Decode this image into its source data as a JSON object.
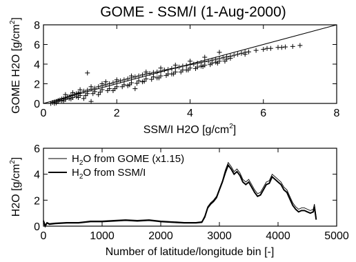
{
  "chart_data": [
    {
      "type": "scatter",
      "title": "GOME - SSM/I (1-Aug-2000)",
      "xlabel": {
        "main": "SSM/I H2O [g/cm",
        "sup": "2",
        "end": "]"
      },
      "ylabel": {
        "main": "GOME H2O [g/cm",
        "sup": "2",
        "end": "]"
      },
      "xlim": [
        0,
        8
      ],
      "ylim": [
        0,
        8
      ],
      "xticks": [
        "0",
        "2",
        "4",
        "6",
        "8"
      ],
      "xtick_values": [
        0,
        2,
        4,
        6,
        8
      ],
      "yticks": [
        "0",
        "2",
        "4",
        "6",
        "8"
      ],
      "ytick_values": [
        0,
        2,
        4,
        6,
        8
      ],
      "marker": "+",
      "reference_line": {
        "x": [
          0,
          8
        ],
        "y": [
          0,
          8
        ]
      },
      "points_x": [
        0.2,
        0.25,
        0.3,
        0.35,
        0.4,
        0.45,
        0.5,
        0.55,
        0.6,
        0.65,
        0.7,
        0.75,
        0.8,
        0.85,
        0.9,
        0.95,
        1.0,
        1.1,
        1.2,
        1.3,
        1.4,
        1.5,
        1.6,
        1.7,
        1.8,
        1.9,
        2.0,
        2.1,
        2.2,
        2.3,
        2.4,
        2.5,
        2.6,
        2.7,
        2.8,
        2.9,
        3.0,
        3.1,
        3.2,
        3.3,
        3.4,
        3.5,
        3.6,
        3.7,
        3.8,
        3.9,
        4.0,
        4.1,
        4.2,
        4.3,
        4.4,
        4.5,
        4.6,
        4.7,
        4.8,
        4.9,
        5.0,
        5.1,
        5.2,
        5.3,
        5.4,
        5.5,
        5.6,
        5.8,
        6.0,
        6.2,
        6.4,
        6.6,
        6.8,
        7.0,
        0.3,
        0.4,
        0.5,
        0.6,
        0.7,
        0.8,
        0.9,
        1.0,
        1.2,
        1.4,
        1.6,
        1.8,
        2.0,
        2.2,
        2.4,
        2.6,
        2.8,
        3.0,
        3.2,
        3.4,
        3.6,
        3.8,
        4.0,
        4.2,
        4.4,
        4.6,
        4.8,
        5.0,
        0.6,
        0.8,
        1.0,
        1.3,
        1.6,
        2.0,
        2.4,
        2.8,
        3.2,
        3.6,
        4.0,
        4.4,
        4.8,
        1.1,
        1.5,
        1.9,
        2.3,
        2.7,
        3.1,
        3.5,
        3.9,
        4.3,
        4.7,
        5.1,
        5.5,
        6.1,
        6.5,
        1.2,
        1.7,
        2.5,
        1.3,
        0.35,
        0.55,
        0.75,
        0.95,
        1.15,
        1.35,
        1.55,
        1.75,
        1.95,
        2.15,
        2.35,
        2.55,
        2.75,
        2.95,
        3.15,
        3.35,
        3.55,
        3.75,
        3.95,
        4.15,
        4.35,
        4.55,
        4.75,
        4.95
      ],
      "points_y": [
        0.0,
        0.1,
        0.15,
        0.2,
        0.3,
        0.35,
        0.45,
        0.5,
        0.55,
        0.65,
        0.7,
        0.8,
        0.85,
        0.9,
        1.0,
        1.05,
        1.1,
        1.25,
        1.35,
        1.45,
        1.55,
        1.7,
        1.8,
        1.9,
        2.0,
        2.1,
        2.2,
        2.3,
        2.4,
        2.5,
        2.6,
        2.7,
        2.8,
        2.9,
        3.0,
        3.05,
        3.15,
        3.2,
        3.3,
        3.4,
        3.45,
        3.55,
        3.6,
        3.7,
        3.8,
        3.85,
        3.95,
        4.0,
        4.1,
        4.15,
        4.25,
        4.3,
        4.4,
        4.5,
        4.55,
        4.65,
        4.75,
        4.8,
        4.9,
        5.0,
        5.1,
        5.2,
        5.25,
        5.4,
        5.5,
        5.6,
        5.7,
        5.75,
        5.8,
        5.9,
        0.0,
        0.2,
        0.3,
        0.4,
        0.5,
        0.6,
        0.7,
        0.8,
        1.0,
        1.2,
        1.4,
        1.5,
        1.7,
        1.9,
        2.1,
        2.3,
        2.5,
        2.7,
        2.8,
        3.0,
        3.2,
        3.4,
        3.6,
        3.7,
        3.9,
        4.1,
        4.3,
        4.5,
        0.9,
        1.1,
        1.4,
        1.7,
        2.0,
        2.4,
        2.8,
        3.2,
        3.6,
        3.9,
        4.3,
        4.7,
        5.2,
        0.5,
        0.9,
        1.3,
        1.8,
        2.2,
        2.6,
        3.0,
        3.4,
        3.8,
        4.2,
        4.6,
        5.0,
        5.6,
        5.7,
        3.1,
        2.2,
        1.5,
        0.2,
        0.05,
        0.25,
        0.45,
        0.6,
        0.8,
        1.0,
        1.15,
        1.3,
        1.5,
        1.7,
        1.9,
        2.05,
        2.25,
        2.45,
        2.6,
        2.85,
        3.0,
        3.2,
        3.4,
        3.55,
        3.75,
        3.95,
        4.1,
        4.3
      ],
      "grid": false
    },
    {
      "type": "line",
      "xlabel": "Number of latitude/longitude bin [-]",
      "ylabel": {
        "main": "H2O [g/cm",
        "sup": "2",
        "end": "]"
      },
      "xlim": [
        0,
        5000
      ],
      "ylim": [
        0,
        6
      ],
      "xticks": [
        "0",
        "1000",
        "2000",
        "3000",
        "4000",
        "5000"
      ],
      "xtick_values": [
        0,
        1000,
        2000,
        3000,
        4000,
        5000
      ],
      "yticks": [
        "0",
        "2",
        "4",
        "6"
      ],
      "ytick_values": [
        0,
        2,
        4,
        6
      ],
      "legend": "top-left",
      "series": [
        {
          "name": {
            "pre": "H",
            "sub": "2",
            "post": "O from GOME (x1.15)"
          },
          "style": "thin",
          "x": [
            0,
            30,
            60,
            100,
            200,
            400,
            600,
            800,
            1000,
            1200,
            1400,
            1600,
            1800,
            2000,
            2200,
            2400,
            2600,
            2700,
            2750,
            2800,
            2850,
            2900,
            2950,
            3000,
            3050,
            3100,
            3150,
            3200,
            3250,
            3300,
            3350,
            3400,
            3450,
            3500,
            3550,
            3600,
            3650,
            3700,
            3750,
            3800,
            3850,
            3900,
            3950,
            4000,
            4050,
            4100,
            4150,
            4200,
            4250,
            4300,
            4350,
            4400,
            4450,
            4500,
            4550,
            4600,
            4620,
            4650
          ],
          "y": [
            0.5,
            0.1,
            0.3,
            0.2,
            0.25,
            0.3,
            0.3,
            0.4,
            0.4,
            0.45,
            0.5,
            0.45,
            0.5,
            0.4,
            0.35,
            0.3,
            0.3,
            0.35,
            0.8,
            1.5,
            1.8,
            2.0,
            2.3,
            2.9,
            3.5,
            4.3,
            4.9,
            4.6,
            4.2,
            4.4,
            4.1,
            3.6,
            3.4,
            3.6,
            3.2,
            2.8,
            2.5,
            2.6,
            3.0,
            3.4,
            3.5,
            4.0,
            3.8,
            3.6,
            3.4,
            3.0,
            2.8,
            2.3,
            1.8,
            1.5,
            1.3,
            1.4,
            1.4,
            1.3,
            1.2,
            1.3,
            1.7,
            0.7
          ]
        },
        {
          "name": {
            "pre": "H",
            "sub": "2",
            "post": "O from SSM/I"
          },
          "style": "thick",
          "x": [
            0,
            30,
            60,
            100,
            200,
            400,
            600,
            800,
            1000,
            1200,
            1400,
            1600,
            1800,
            2000,
            2200,
            2400,
            2600,
            2700,
            2750,
            2800,
            2850,
            2900,
            2950,
            3000,
            3050,
            3100,
            3150,
            3200,
            3250,
            3300,
            3350,
            3400,
            3450,
            3500,
            3550,
            3600,
            3650,
            3700,
            3750,
            3800,
            3850,
            3900,
            3950,
            4000,
            4050,
            4100,
            4150,
            4200,
            4250,
            4300,
            4350,
            4400,
            4450,
            4500,
            4550,
            4600,
            4620,
            4650
          ],
          "y": [
            0.4,
            0.0,
            0.25,
            0.15,
            0.2,
            0.25,
            0.25,
            0.35,
            0.35,
            0.4,
            0.45,
            0.4,
            0.45,
            0.35,
            0.3,
            0.25,
            0.25,
            0.3,
            0.7,
            1.4,
            1.7,
            1.9,
            2.2,
            2.8,
            3.4,
            4.1,
            4.7,
            4.4,
            4.0,
            4.2,
            3.9,
            3.4,
            3.2,
            3.4,
            3.0,
            2.6,
            2.3,
            2.4,
            2.8,
            3.2,
            3.3,
            3.8,
            3.6,
            3.4,
            3.2,
            2.8,
            2.6,
            2.1,
            1.6,
            1.3,
            1.1,
            1.2,
            1.2,
            1.1,
            1.0,
            1.1,
            1.5,
            0.5
          ]
        }
      ],
      "grid": false
    }
  ]
}
